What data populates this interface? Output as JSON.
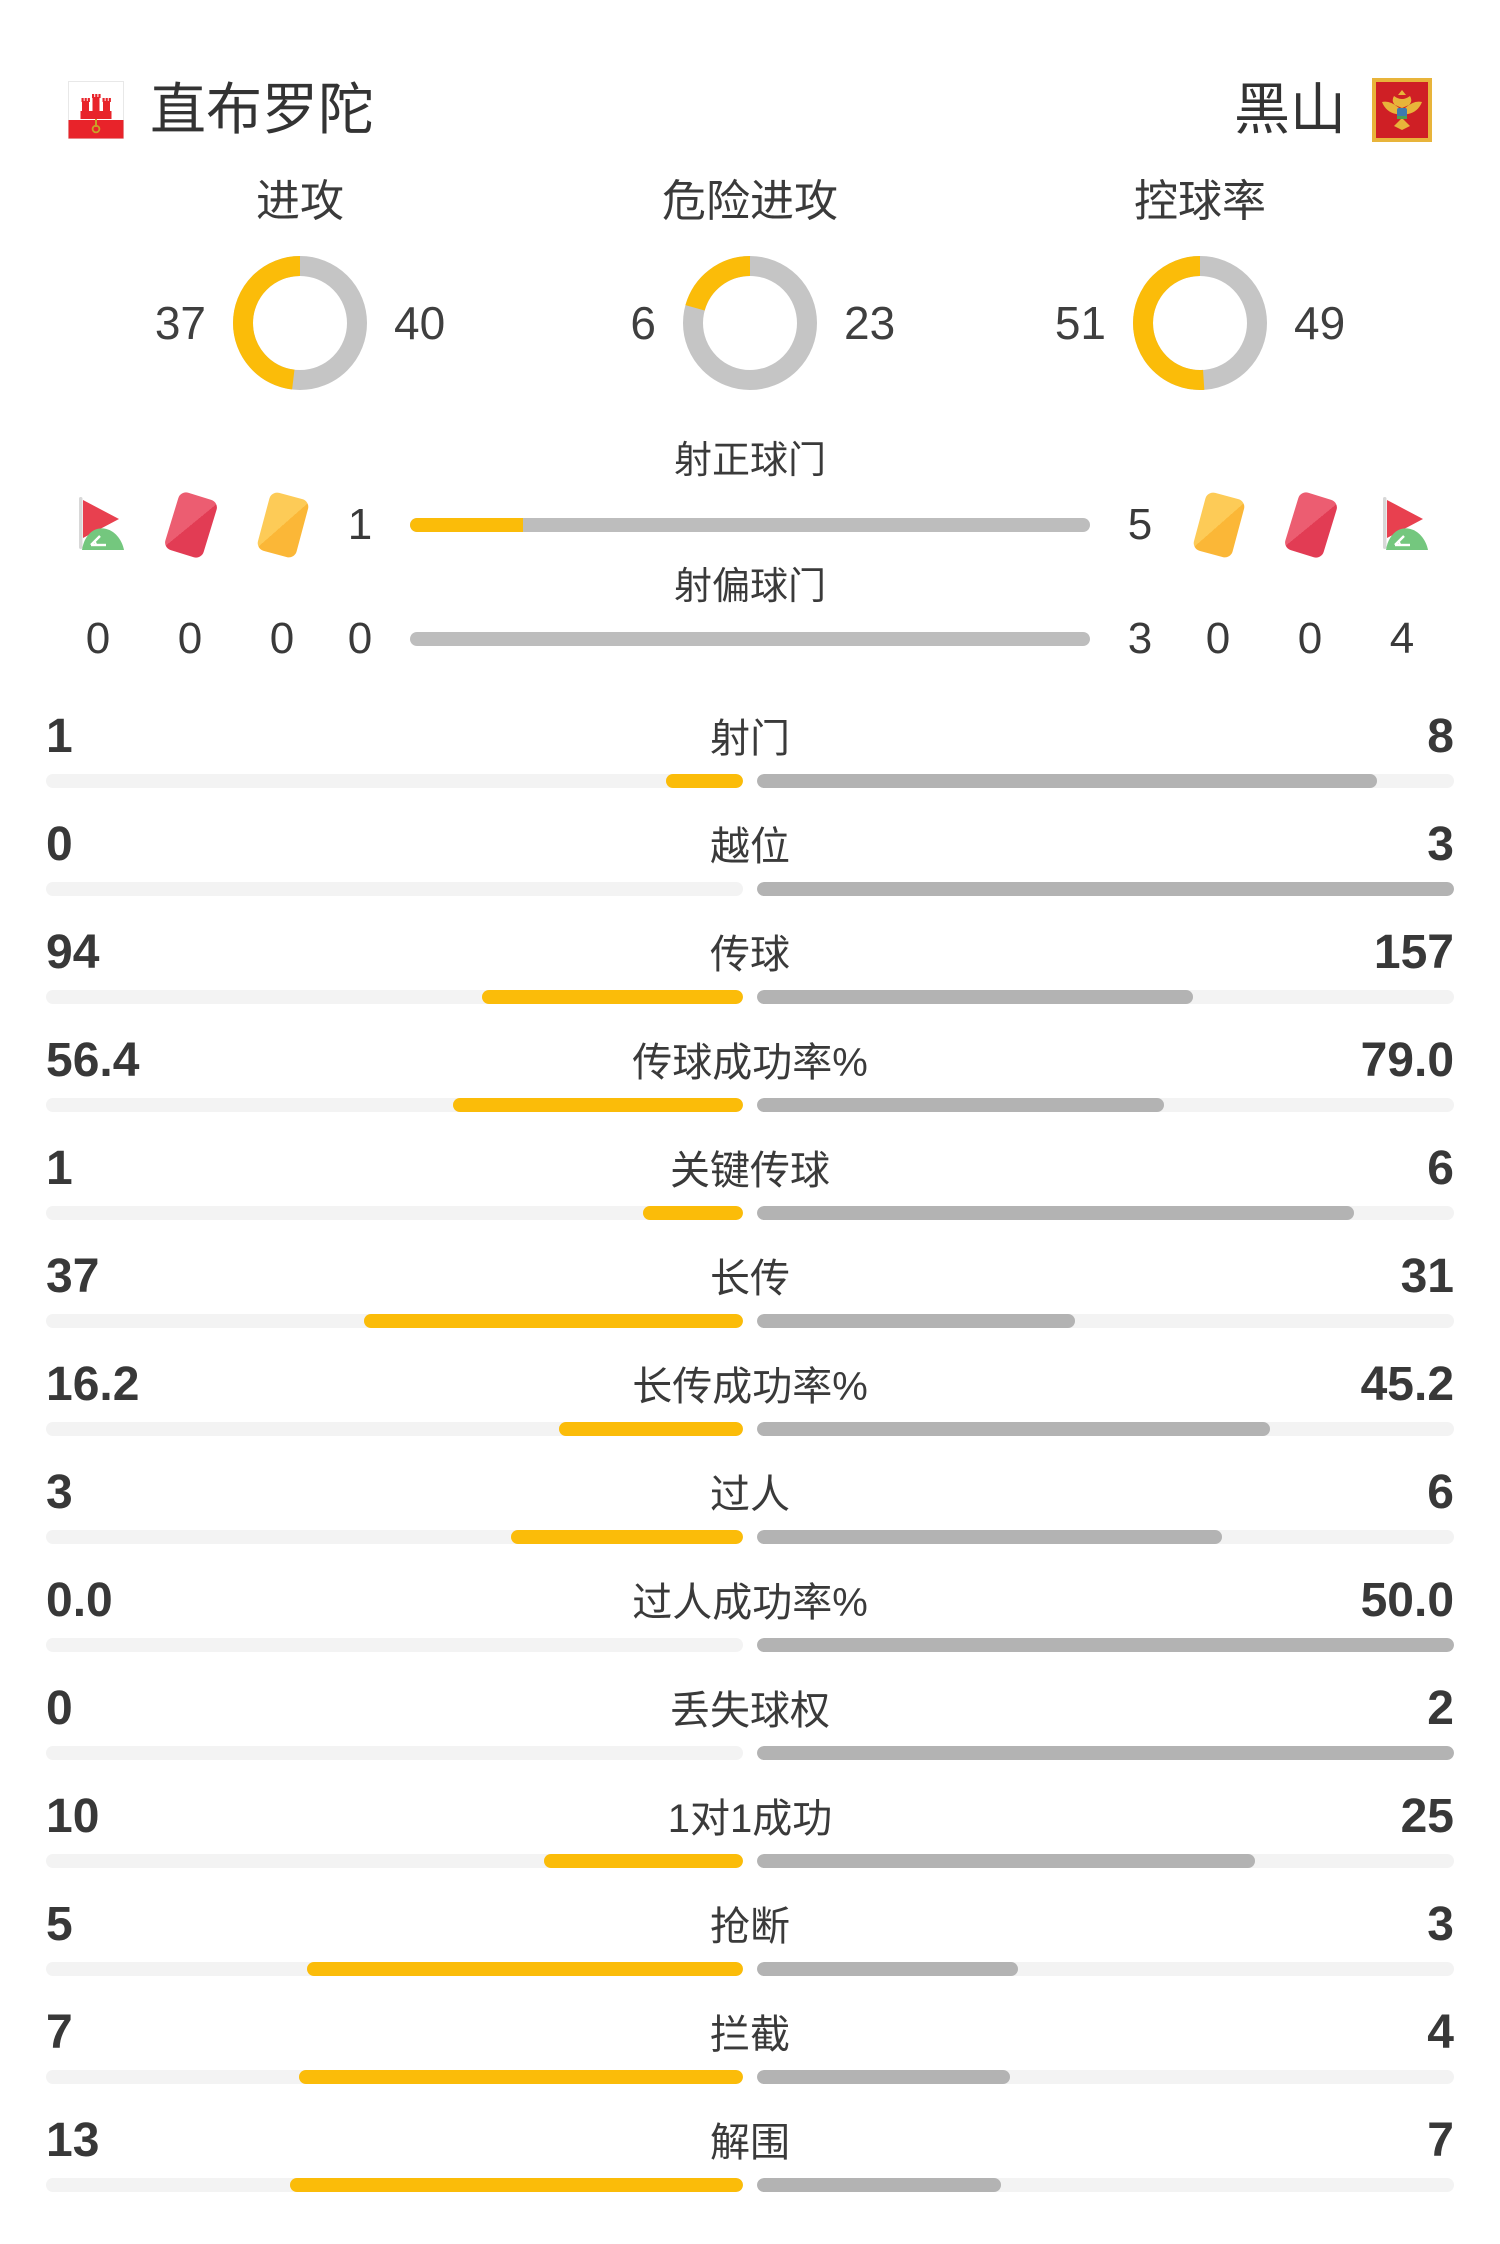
{
  "header": {
    "home": {
      "name": "直布罗陀"
    },
    "away": {
      "name": "黑山"
    }
  },
  "colors": {
    "home_accent": "#fbbc09",
    "away_bar": "#b3b3b3",
    "donut_gray": "#c5c5c5",
    "track": "#f3f3f3",
    "top_bar_gray": "#bdbdbd",
    "card_red": "#e23c54",
    "card_yellow": "#fbb737",
    "flag_green": "#74c77e"
  },
  "donuts": [
    {
      "label": "进攻",
      "home": 37,
      "away": 40
    },
    {
      "label": "危险进攻",
      "home": 6,
      "away": 23
    },
    {
      "label": "控球率",
      "home": 51,
      "away": 49
    }
  ],
  "shots": {
    "on_target": {
      "label": "射正球门",
      "home": "1",
      "away": "5"
    },
    "off_target": {
      "label": "射偏球门",
      "home": "0",
      "away": "3"
    }
  },
  "cards": {
    "home": {
      "corner": "0",
      "red": "0",
      "yellow": "0"
    },
    "away": {
      "yellow": "0",
      "red": "0",
      "corner": "4"
    }
  },
  "stats": [
    {
      "label": "射门",
      "home": "1",
      "away": "8"
    },
    {
      "label": "越位",
      "home": "0",
      "away": "3"
    },
    {
      "label": "传球",
      "home": "94",
      "away": "157"
    },
    {
      "label": "传球成功率%",
      "home": "56.4",
      "away": "79.0"
    },
    {
      "label": "关键传球",
      "home": "1",
      "away": "6"
    },
    {
      "label": "长传",
      "home": "37",
      "away": "31"
    },
    {
      "label": "长传成功率%",
      "home": "16.2",
      "away": "45.2"
    },
    {
      "label": "过人",
      "home": "3",
      "away": "6"
    },
    {
      "label": "过人成功率%",
      "home": "0.0",
      "away": "50.0"
    },
    {
      "label": "丢失球权",
      "home": "0",
      "away": "2"
    },
    {
      "label": "1对1成功",
      "home": "10",
      "away": "25"
    },
    {
      "label": "抢断",
      "home": "5",
      "away": "3"
    },
    {
      "label": "拦截",
      "home": "7",
      "away": "4"
    },
    {
      "label": "解围",
      "home": "13",
      "away": "7"
    }
  ],
  "chart_data": [
    {
      "type": "pie",
      "title": "进攻",
      "legend": [
        "直布罗陀",
        "黑山"
      ],
      "values": [
        37,
        40
      ]
    },
    {
      "type": "pie",
      "title": "危险进攻",
      "legend": [
        "直布罗陀",
        "黑山"
      ],
      "values": [
        6,
        23
      ]
    },
    {
      "type": "pie",
      "title": "控球率",
      "legend": [
        "直布罗陀",
        "黑山"
      ],
      "values": [
        51,
        49
      ]
    },
    {
      "type": "bar",
      "categories": [
        "射正球门",
        "射偏球门",
        "射门",
        "越位",
        "传球",
        "传球成功率%",
        "关键传球",
        "长传",
        "长传成功率%",
        "过人",
        "过人成功率%",
        "丢失球权",
        "1对1成功",
        "抢断",
        "拦截",
        "解围"
      ],
      "series": [
        {
          "name": "直布罗陀",
          "values": [
            1,
            0,
            1,
            0,
            94,
            56.4,
            1,
            37,
            16.2,
            3,
            0.0,
            0,
            10,
            5,
            7,
            13
          ]
        },
        {
          "name": "黑山",
          "values": [
            5,
            3,
            8,
            3,
            157,
            79.0,
            6,
            31,
            45.2,
            6,
            50.0,
            2,
            25,
            3,
            4,
            7
          ]
        }
      ],
      "note": "每条横条按 值/(主+客) 比例填充；黄色=直布罗陀，灰色=黑山"
    }
  ]
}
